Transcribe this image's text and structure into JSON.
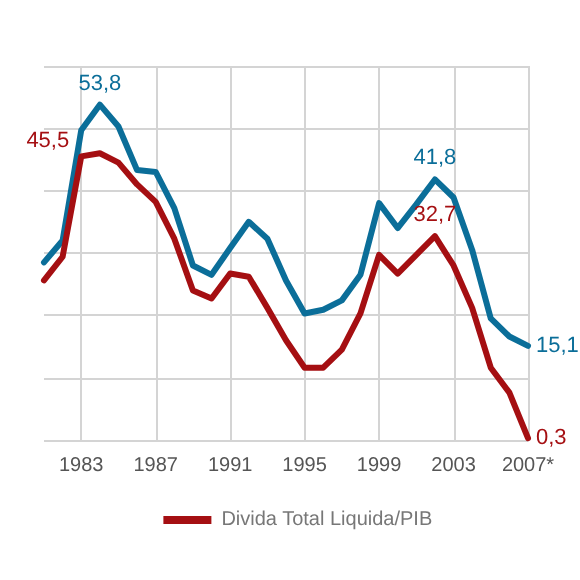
{
  "chart_data": {
    "type": "line",
    "x": [
      1981,
      1982,
      1983,
      1984,
      1985,
      1986,
      1987,
      1988,
      1989,
      1990,
      1991,
      1992,
      1993,
      1994,
      1995,
      1996,
      1997,
      1998,
      1999,
      2000,
      2001,
      2002,
      2003,
      2004,
      2005,
      2006,
      2007
    ],
    "series": [
      {
        "color": "#0b6e99",
        "values": [
          28.5,
          32,
          49.7,
          53.8,
          50.3,
          43.3,
          43,
          37.2,
          28,
          26.5,
          30.8,
          35,
          32.3,
          25.6,
          20.3,
          20.9,
          22.4,
          26.5,
          38,
          34,
          37.8,
          41.8,
          38.9,
          30.5,
          19.5,
          16.6,
          15.1
        ],
        "value_labels": [
          null,
          null,
          null,
          "53,8",
          null,
          null,
          null,
          null,
          null,
          null,
          null,
          null,
          null,
          null,
          null,
          null,
          null,
          null,
          null,
          null,
          null,
          "41,8",
          null,
          null,
          null,
          null,
          "15,1"
        ]
      },
      {
        "name": "Divida Total Liquida/PIB",
        "color": "#a50f12",
        "values": [
          25.6,
          29.4,
          45.5,
          46,
          44.5,
          41,
          38.2,
          32.3,
          24,
          22.7,
          26.7,
          26.2,
          21.2,
          16,
          11.6,
          11.6,
          14.5,
          20.3,
          29.7,
          26.7,
          29.7,
          32.7,
          28,
          21.2,
          11.6,
          7.6,
          0.3
        ],
        "value_labels": [
          null,
          null,
          "45,5",
          null,
          null,
          null,
          null,
          null,
          null,
          null,
          null,
          null,
          null,
          null,
          null,
          null,
          null,
          null,
          null,
          null,
          null,
          "32,7",
          null,
          null,
          null,
          null,
          "0,3"
        ]
      }
    ],
    "xlim": [
      1981,
      2007
    ],
    "xticks": [
      1983,
      1987,
      1991,
      1995,
      1999,
      2003,
      {
        "value": 2007,
        "label": "2007*"
      }
    ],
    "ylim": [
      0,
      60
    ],
    "yticks": [
      {
        "value": 0,
        "label": null
      },
      {
        "value": 10,
        "label": null
      },
      {
        "value": 20,
        "label": null
      },
      {
        "value": 30,
        "label": null
      },
      {
        "value": 40,
        "label": null
      },
      {
        "value": 50,
        "label": null
      },
      {
        "value": 60,
        "label": null
      }
    ],
    "tick_labels": "x",
    "grid": true,
    "legend": "bottom",
    "marker": "none",
    "line_style": "solid"
  }
}
